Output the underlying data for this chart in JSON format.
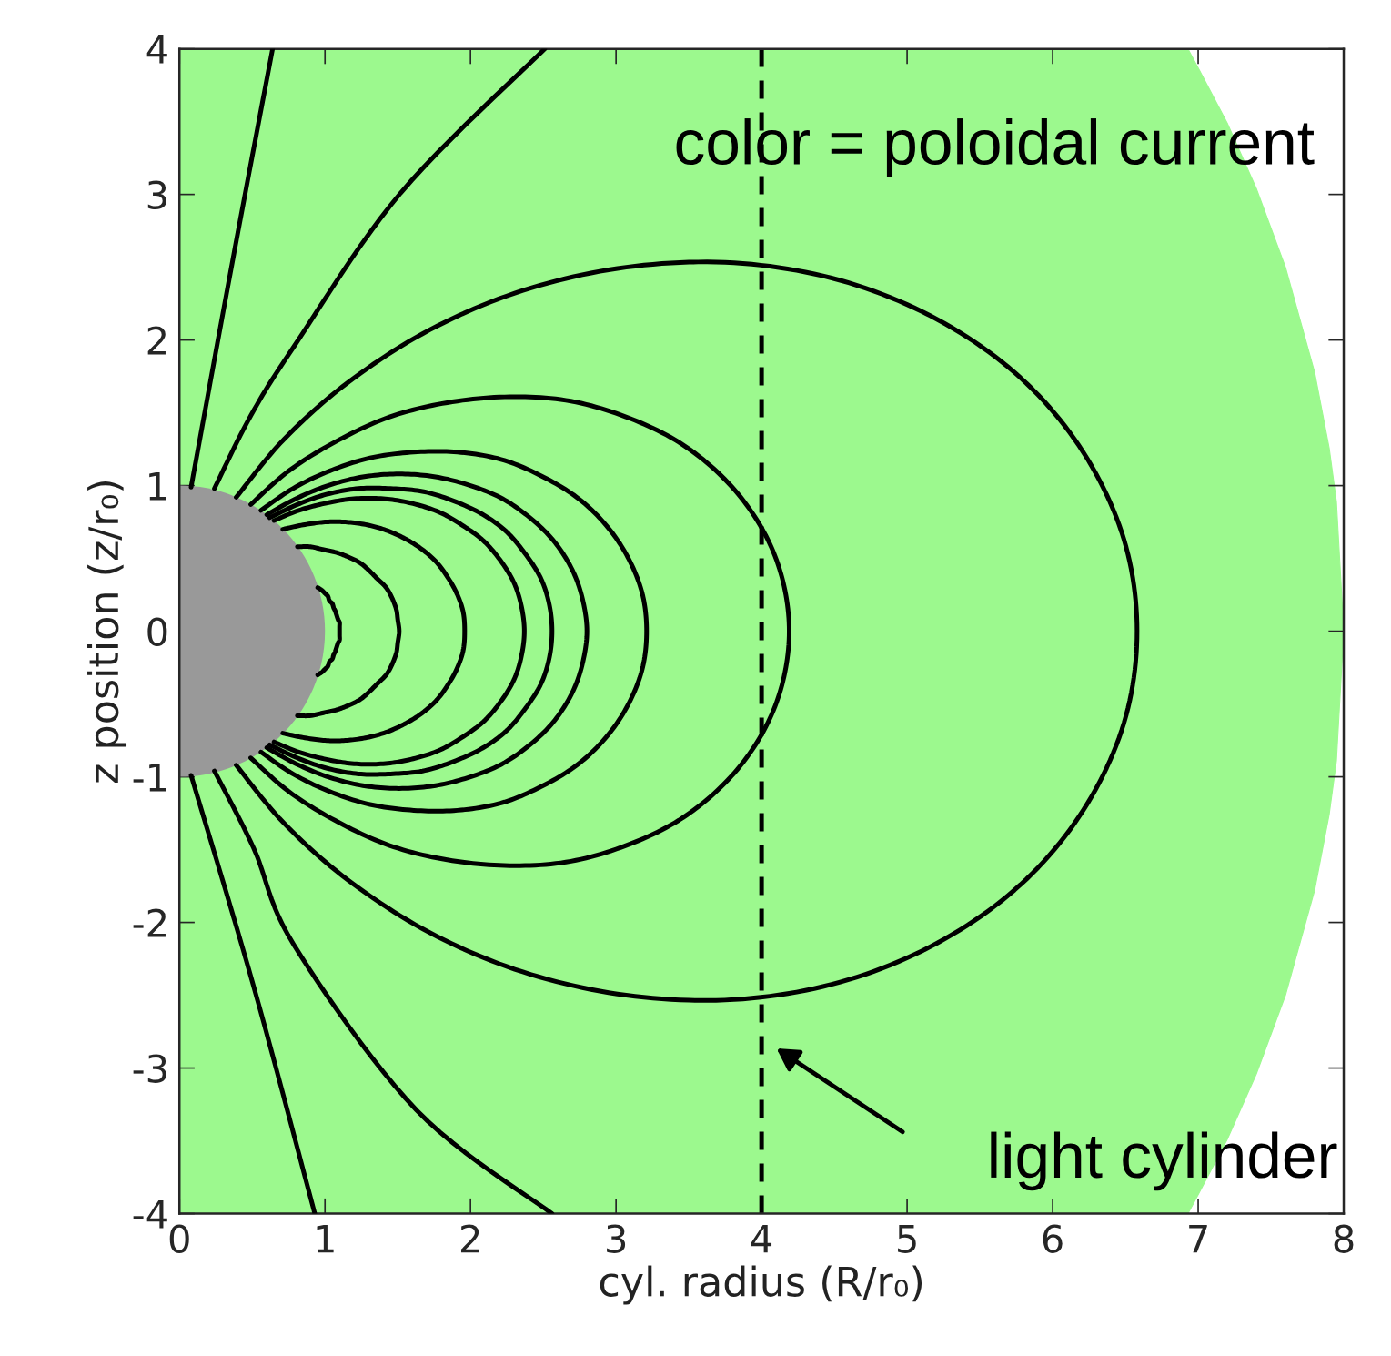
{
  "chart_data": {
    "type": "line",
    "xlabel": "cyl. radius (R/r₀)",
    "ylabel": "z position (z/r₀)",
    "xlim": [
      0,
      8
    ],
    "ylim": [
      -4,
      4
    ],
    "xticks": [
      0,
      1,
      2,
      3,
      4,
      5,
      6,
      7,
      8
    ],
    "yticks": [
      {
        "value": -4,
        "label": "-4"
      },
      {
        "value": -3,
        "label": "-3"
      },
      {
        "value": -2,
        "label": "-2"
      },
      {
        "value": -1,
        "label": "-1"
      },
      0,
      1,
      2,
      3,
      4
    ],
    "line_style": "solid",
    "marker": "none",
    "ref_lines": [
      {
        "axis": "x",
        "value": 4,
        "color": "#000000",
        "line_style": "dashed"
      }
    ],
    "annotations": [
      "color = poloidal current",
      "light cylinder"
    ],
    "series": [
      {
        "type": "area",
        "color": "#9cf98e",
        "x": [
          0,
          6.93,
          7.0,
          7.2,
          7.4,
          7.6,
          7.8,
          7.9,
          7.95,
          8.0
        ],
        "values": [
          4,
          4,
          3.87,
          3.49,
          3.04,
          2.5,
          1.78,
          1.26,
          0.89,
          0
        ]
      },
      {
        "type": "area",
        "color": "#9cf98e",
        "x": [
          0,
          6.93,
          7.0,
          7.2,
          7.4,
          7.6,
          7.8,
          7.9,
          7.95,
          8.0
        ],
        "values": [
          -4,
          -4,
          -3.87,
          -3.49,
          -3.04,
          -2.5,
          -1.78,
          -1.26,
          -0.89,
          0
        ]
      },
      {
        "color": "#000000",
        "x": [
          0.95,
          0.98,
          1.0,
          1.02,
          1.03,
          1.05,
          1.06,
          1.07,
          1.08,
          1.09,
          1.1,
          1.1,
          1.1,
          1.1,
          1.1,
          1.09,
          1.08,
          1.07,
          1.06,
          1.05,
          1.03,
          1.02,
          1.0,
          0.98,
          0.95
        ],
        "values": [
          0.3,
          0.28,
          0.26,
          0.24,
          0.21,
          0.19,
          0.16,
          0.14,
          0.11,
          0.08,
          0.06,
          0.03,
          0.0,
          -0.03,
          -0.06,
          -0.08,
          -0.11,
          -0.14,
          -0.16,
          -0.19,
          -0.21,
          -0.24,
          -0.26,
          -0.28,
          -0.3
        ]
      },
      {
        "color": "#000000",
        "x": [
          0.81,
          0.9,
          0.99,
          1.08,
          1.16,
          1.24,
          1.3,
          1.36,
          1.42,
          1.46,
          1.49,
          1.5,
          1.51,
          1.5,
          1.49,
          1.46,
          1.42,
          1.36,
          1.3,
          1.24,
          1.16,
          1.08,
          0.99,
          0.9,
          0.81
        ],
        "values": [
          0.58,
          0.58,
          0.56,
          0.54,
          0.51,
          0.47,
          0.42,
          0.36,
          0.3,
          0.23,
          0.15,
          0.08,
          0.0,
          -0.08,
          -0.15,
          -0.23,
          -0.3,
          -0.36,
          -0.42,
          -0.47,
          -0.51,
          -0.54,
          -0.56,
          -0.58,
          -0.58
        ]
      },
      {
        "color": "#000000",
        "x": [
          0.71,
          0.85,
          1.0,
          1.14,
          1.29,
          1.43,
          1.56,
          1.67,
          1.77,
          1.85,
          1.91,
          1.95,
          1.96,
          1.95,
          1.91,
          1.85,
          1.77,
          1.67,
          1.56,
          1.43,
          1.29,
          1.14,
          1.0,
          0.85,
          0.71
        ],
        "values": [
          0.7,
          0.73,
          0.75,
          0.75,
          0.73,
          0.69,
          0.63,
          0.56,
          0.47,
          0.36,
          0.25,
          0.13,
          0.0,
          -0.13,
          -0.25,
          -0.36,
          -0.47,
          -0.56,
          -0.63,
          -0.69,
          -0.73,
          -0.75,
          -0.75,
          -0.73,
          -0.7
        ]
      },
      {
        "color": "#000000",
        "x": [
          0.65,
          0.82,
          1.01,
          1.2,
          1.4,
          1.59,
          1.78,
          1.94,
          2.09,
          2.21,
          2.3,
          2.35,
          2.37,
          2.35,
          2.3,
          2.21,
          2.09,
          1.94,
          1.78,
          1.59,
          1.4,
          1.2,
          1.01,
          0.82,
          0.65
        ],
        "values": [
          0.76,
          0.83,
          0.88,
          0.91,
          0.91,
          0.88,
          0.82,
          0.73,
          0.62,
          0.48,
          0.33,
          0.17,
          0.0,
          -0.17,
          -0.33,
          -0.48,
          -0.62,
          -0.73,
          -0.82,
          -0.88,
          -0.91,
          -0.91,
          -0.88,
          -0.83,
          -0.76
        ]
      },
      {
        "color": "#000000",
        "x": [
          0.62,
          0.81,
          1.01,
          1.23,
          1.45,
          1.67,
          1.87,
          2.07,
          2.24,
          2.37,
          2.48,
          2.54,
          2.56,
          2.54,
          2.48,
          2.37,
          2.24,
          2.07,
          1.87,
          1.67,
          1.45,
          1.23,
          1.01,
          0.81,
          0.62
        ],
        "values": [
          0.78,
          0.87,
          0.94,
          0.98,
          0.98,
          0.96,
          0.9,
          0.81,
          0.69,
          0.54,
          0.37,
          0.19,
          0.0,
          -0.19,
          -0.37,
          -0.54,
          -0.69,
          -0.81,
          -0.9,
          -0.96,
          -0.98,
          -0.98,
          -0.94,
          -0.87,
          -0.78
        ]
      },
      {
        "color": "#000000",
        "x": [
          0.6,
          0.8,
          1.02,
          1.26,
          1.51,
          1.76,
          2.0,
          2.22,
          2.42,
          2.58,
          2.7,
          2.77,
          2.8,
          2.77,
          2.7,
          2.58,
          2.42,
          2.22,
          2.0,
          1.76,
          1.51,
          1.26,
          1.02,
          0.8,
          0.6
        ],
        "values": [
          0.8,
          0.91,
          1.0,
          1.06,
          1.08,
          1.06,
          1.0,
          0.91,
          0.77,
          0.61,
          0.42,
          0.22,
          0.0,
          -0.22,
          -0.42,
          -0.61,
          -0.77,
          -0.91,
          -1.0,
          -1.06,
          -1.08,
          -1.06,
          -1.0,
          -0.91,
          -0.8
        ]
      },
      {
        "color": "#000000",
        "x": [
          0.56,
          0.78,
          1.03,
          1.31,
          1.61,
          1.91,
          2.21,
          2.48,
          2.73,
          2.93,
          3.08,
          3.18,
          3.21,
          3.18,
          3.08,
          2.93,
          2.73,
          2.48,
          2.21,
          1.91,
          1.61,
          1.31,
          1.03,
          0.78,
          0.56
        ],
        "values": [
          0.83,
          0.98,
          1.1,
          1.19,
          1.23,
          1.23,
          1.18,
          1.07,
          0.92,
          0.73,
          0.51,
          0.26,
          0.0,
          -0.26,
          -0.51,
          -0.73,
          -0.92,
          -1.07,
          -1.18,
          -1.23,
          -1.23,
          -1.19,
          -1.1,
          -0.98,
          -0.83
        ]
      },
      {
        "color": "#000000",
        "x": [
          0.49,
          0.75,
          1.07,
          1.44,
          1.84,
          2.27,
          2.69,
          3.1,
          3.46,
          3.77,
          4.0,
          4.14,
          4.19,
          4.14,
          4.0,
          3.77,
          3.46,
          3.1,
          2.69,
          2.27,
          1.84,
          1.44,
          1.07,
          0.75,
          0.49
        ],
        "values": [
          0.87,
          1.1,
          1.3,
          1.47,
          1.57,
          1.61,
          1.58,
          1.46,
          1.28,
          1.02,
          0.71,
          0.37,
          0.0,
          -0.37,
          -0.71,
          -1.02,
          -1.28,
          -1.46,
          -1.58,
          -1.61,
          -1.57,
          -1.47,
          -1.3,
          -1.1,
          -0.87
        ]
      },
      {
        "color": "#000000",
        "x": [
          0.39,
          0.72,
          1.16,
          1.72,
          2.36,
          3.07,
          3.81,
          4.54,
          5.21,
          5.78,
          6.21,
          6.49,
          6.58,
          6.49,
          6.21,
          5.78,
          5.21,
          4.54,
          3.81,
          3.07,
          2.36,
          1.72,
          1.16,
          0.72,
          0.39
        ],
        "values": [
          0.92,
          1.32,
          1.71,
          2.07,
          2.34,
          2.5,
          2.53,
          2.41,
          2.14,
          1.74,
          1.23,
          0.63,
          0.0,
          -0.63,
          -1.23,
          -1.74,
          -2.14,
          -2.41,
          -2.53,
          -2.5,
          -2.34,
          -2.07,
          -1.71,
          -1.32,
          -0.92
        ]
      },
      {
        "color": "#000000",
        "x": [
          0.08,
          0.37,
          0.64
        ],
        "values": [
          0.99,
          2.57,
          4.0
        ]
      },
      {
        "color": "#000000",
        "x": [
          0.24,
          0.49,
          0.79,
          1.52,
          2.51
        ],
        "values": [
          0.98,
          1.48,
          1.96,
          3.01,
          4.0
        ]
      },
      {
        "color": "#000000",
        "x": [
          0.08,
          0.51,
          0.93
        ],
        "values": [
          -0.99,
          -2.44,
          -4.0
        ]
      },
      {
        "color": "#000000",
        "x": [
          0.24,
          0.51,
          0.79,
          1.63,
          2.56
        ],
        "values": [
          -0.96,
          -1.49,
          -2.16,
          -3.29,
          -4.0
        ]
      }
    ]
  }
}
